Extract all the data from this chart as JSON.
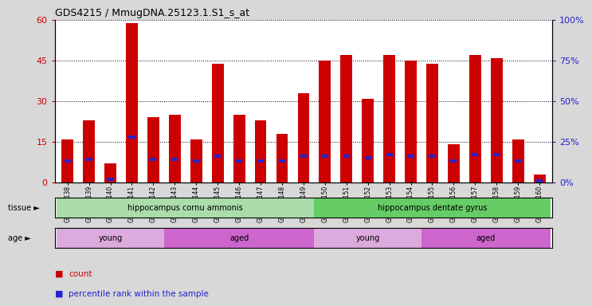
{
  "title": "GDS4215 / MmugDNA.25123.1.S1_s_at",
  "samples": [
    "GSM297138",
    "GSM297139",
    "GSM297140",
    "GSM297141",
    "GSM297142",
    "GSM297143",
    "GSM297144",
    "GSM297145",
    "GSM297146",
    "GSM297147",
    "GSM297148",
    "GSM297149",
    "GSM297150",
    "GSM297151",
    "GSM297152",
    "GSM297153",
    "GSM297154",
    "GSM297155",
    "GSM297156",
    "GSM297157",
    "GSM297158",
    "GSM297159",
    "GSM297160"
  ],
  "counts": [
    16,
    23,
    7,
    59,
    24,
    25,
    16,
    44,
    25,
    23,
    18,
    33,
    45,
    47,
    31,
    47,
    45,
    44,
    14,
    47,
    46,
    16,
    3
  ],
  "percentile_pct": [
    13,
    14,
    2,
    28,
    14,
    14,
    13,
    16,
    13,
    13,
    13,
    16,
    16,
    16,
    15,
    17,
    16,
    16,
    13,
    17,
    17,
    13,
    1
  ],
  "ylim_left": [
    0,
    60
  ],
  "ylim_right": [
    0,
    100
  ],
  "yticks_left": [
    0,
    15,
    30,
    45,
    60
  ],
  "yticks_right": [
    0,
    25,
    50,
    75,
    100
  ],
  "ytick_labels_left": [
    "0",
    "15",
    "30",
    "45",
    "60"
  ],
  "ytick_labels_right": [
    "0%",
    "25%",
    "50%",
    "75%",
    "100%"
  ],
  "bar_color": "#cc0000",
  "marker_color": "#2222cc",
  "tissue_groups": [
    {
      "label": "hippocampus cornu ammonis",
      "start": 0,
      "end": 11,
      "color": "#aaddaa"
    },
    {
      "label": "hippocampus dentate gyrus",
      "start": 12,
      "end": 22,
      "color": "#66cc66"
    }
  ],
  "age_groups": [
    {
      "label": "young",
      "start": 0,
      "end": 4,
      "color": "#ddaadd"
    },
    {
      "label": "aged",
      "start": 5,
      "end": 11,
      "color": "#cc66cc"
    },
    {
      "label": "young",
      "start": 12,
      "end": 16,
      "color": "#ddaadd"
    },
    {
      "label": "aged",
      "start": 17,
      "end": 22,
      "color": "#cc66cc"
    }
  ],
  "legend_items": [
    {
      "label": "count",
      "color": "#cc0000"
    },
    {
      "label": "percentile rank within the sample",
      "color": "#2222cc"
    }
  ],
  "bg_color": "#d8d8d8",
  "plot_bg": "#ffffff",
  "left_label_color": "#cc0000",
  "right_label_color": "#2222cc"
}
